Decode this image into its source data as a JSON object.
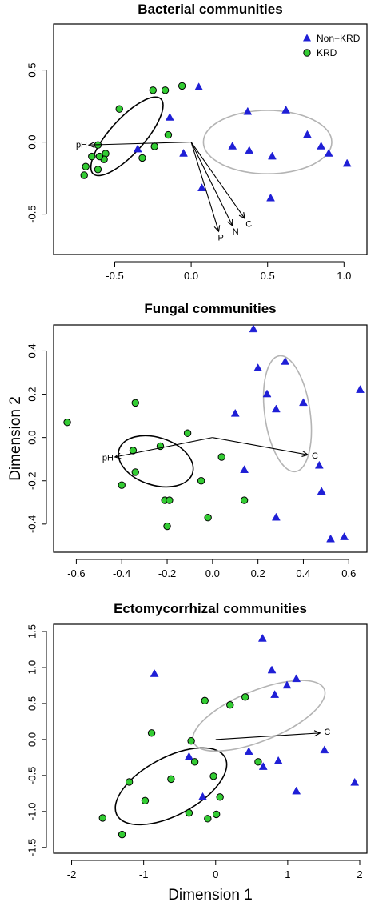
{
  "legend": {
    "position": "top-right",
    "entries": [
      {
        "label": "Non−KRD",
        "marker": "triangle",
        "color": "#1f1fd6"
      },
      {
        "label": "KRD",
        "marker": "circle",
        "color": "#33cc33"
      }
    ]
  },
  "axes": {
    "xlabel": "Dimension 1",
    "ylabel": "Dimension 2"
  },
  "chart_data": [
    {
      "type": "scatter",
      "title": "Bacterial communities",
      "xlabel": "",
      "ylabel": "",
      "xlim": [
        -0.9,
        1.15
      ],
      "ylim": [
        -0.78,
        0.82
      ],
      "xticks": [
        -0.5,
        0.0,
        0.5,
        1.0
      ],
      "xtick_labels": [
        "-0.5",
        "0.0",
        "0.5",
        "1.0"
      ],
      "yticks": [
        -0.5,
        0.0,
        0.5
      ],
      "ytick_labels": [
        "-0.5",
        "0.0",
        "0.5"
      ],
      "series": [
        {
          "name": "Non−KRD",
          "marker": "triangle",
          "x": [
            0.05,
            -0.14,
            -0.35,
            -0.05,
            0.37,
            0.62,
            0.27,
            0.38,
            0.53,
            0.76,
            0.85,
            0.9,
            1.02,
            0.52,
            0.07
          ],
          "y": [
            0.38,
            0.17,
            -0.05,
            -0.08,
            0.21,
            0.22,
            -0.03,
            -0.06,
            -0.1,
            0.05,
            -0.03,
            -0.08,
            -0.15,
            -0.39,
            -0.32
          ]
        },
        {
          "name": "KRD",
          "marker": "circle",
          "x": [
            -0.47,
            -0.25,
            -0.17,
            -0.06,
            -0.15,
            -0.24,
            -0.32,
            -0.61,
            -0.56,
            -0.57,
            -0.6,
            -0.65,
            -0.69,
            -0.7,
            -0.61
          ],
          "y": [
            0.23,
            0.36,
            0.36,
            0.39,
            0.05,
            -0.03,
            -0.11,
            -0.02,
            -0.08,
            -0.12,
            -0.1,
            -0.1,
            -0.17,
            -0.23,
            -0.19
          ]
        }
      ],
      "ellipses": [
        {
          "group": "KRD",
          "cx": -0.42,
          "cy": 0.04,
          "rx": 0.33,
          "ry": 0.12,
          "angle_deg": 48
        },
        {
          "group": "Non−KRD",
          "cx": 0.5,
          "cy": 0.0,
          "rx": 0.42,
          "ry": 0.22,
          "angle_deg": 0
        }
      ],
      "vectors": [
        {
          "label": "pH",
          "x": -0.67,
          "y": -0.02
        },
        {
          "label": "P",
          "x": 0.18,
          "y": -0.62
        },
        {
          "label": "N",
          "x": 0.27,
          "y": -0.58
        },
        {
          "label": "C",
          "x": 0.35,
          "y": -0.53
        }
      ]
    },
    {
      "type": "scatter",
      "title": "Fungal communities",
      "xlabel": "",
      "ylabel": "Dimension 2",
      "xlim": [
        -0.7,
        0.68
      ],
      "ylim": [
        -0.53,
        0.52
      ],
      "xticks": [
        -0.6,
        -0.4,
        -0.2,
        0.0,
        0.2,
        0.4,
        0.6
      ],
      "xtick_labels": [
        "-0.6",
        "-0.4",
        "-0.2",
        "0.0",
        "0.2",
        "0.4",
        "0.6"
      ],
      "yticks": [
        -0.4,
        -0.2,
        0.0,
        0.2,
        0.4
      ],
      "ytick_labels": [
        "-0.4",
        "-0.2",
        "0.0",
        "0.2",
        "0.4"
      ],
      "series": [
        {
          "name": "Non−KRD",
          "marker": "triangle",
          "x": [
            0.18,
            0.2,
            0.32,
            0.24,
            0.28,
            0.65,
            0.1,
            0.4,
            0.47,
            0.14,
            0.48,
            0.28,
            0.58,
            0.52
          ],
          "y": [
            0.5,
            0.32,
            0.35,
            0.2,
            0.13,
            0.22,
            0.11,
            0.16,
            -0.13,
            -0.15,
            -0.25,
            -0.37,
            -0.46,
            -0.47
          ]
        },
        {
          "name": "KRD",
          "marker": "circle",
          "x": [
            -0.64,
            -0.34,
            -0.11,
            -0.35,
            -0.23,
            0.04,
            -0.34,
            -0.4,
            -0.05,
            -0.21,
            -0.19,
            0.14,
            -0.02,
            -0.2
          ],
          "y": [
            0.07,
            0.16,
            0.02,
            -0.06,
            -0.04,
            -0.09,
            -0.16,
            -0.22,
            -0.2,
            -0.29,
            -0.29,
            -0.29,
            -0.37,
            -0.41
          ]
        }
      ],
      "ellipses": [
        {
          "group": "KRD",
          "cx": -0.25,
          "cy": -0.11,
          "rx": 0.17,
          "ry": 0.11,
          "angle_deg": -18
        },
        {
          "group": "Non−KRD",
          "cx": 0.33,
          "cy": 0.11,
          "rx": 0.1,
          "ry": 0.27,
          "angle_deg": 8
        }
      ],
      "vectors": [
        {
          "label": "pH",
          "x": -0.43,
          "y": -0.09
        },
        {
          "label": "C",
          "x": 0.42,
          "y": -0.08
        }
      ]
    },
    {
      "type": "scatter",
      "title": "Ectomycorrhizal communities",
      "xlabel": "Dimension 1",
      "ylabel": "",
      "xlim": [
        -2.25,
        2.1
      ],
      "ylim": [
        -1.58,
        1.6
      ],
      "xticks": [
        -2,
        -1,
        0,
        1,
        2
      ],
      "xtick_labels": [
        "-2",
        "-1",
        "0",
        "1",
        "2"
      ],
      "yticks": [
        -1.5,
        -1.0,
        -0.5,
        0.0,
        0.5,
        1.0,
        1.5
      ],
      "ytick_labels": [
        "-1.5",
        "-1.0",
        "-0.5",
        "0.0",
        "0.5",
        "1.0",
        "1.5"
      ],
      "series": [
        {
          "name": "Non−KRD",
          "marker": "triangle",
          "x": [
            0.65,
            -0.85,
            0.78,
            0.99,
            1.12,
            0.82,
            -0.37,
            0.46,
            0.66,
            1.51,
            0.87,
            1.93,
            1.12,
            -0.18
          ],
          "y": [
            1.4,
            0.91,
            0.96,
            0.75,
            0.84,
            0.62,
            -0.24,
            -0.17,
            -0.38,
            -0.15,
            -0.3,
            -0.6,
            -0.72,
            -0.8
          ]
        },
        {
          "name": "KRD",
          "marker": "circle",
          "x": [
            -0.15,
            0.2,
            0.41,
            -0.89,
            -0.34,
            -1.2,
            -0.62,
            -0.29,
            -0.03,
            0.59,
            -0.98,
            0.06,
            -0.37,
            -0.11,
            0.01,
            -1.57,
            -1.3
          ],
          "y": [
            0.54,
            0.48,
            0.59,
            0.09,
            -0.02,
            -0.59,
            -0.55,
            -0.31,
            -0.51,
            -0.31,
            -0.85,
            -0.8,
            -1.02,
            -1.1,
            -1.04,
            -1.09,
            -1.32
          ]
        }
      ],
      "ellipses": [
        {
          "group": "KRD",
          "cx": -0.62,
          "cy": -0.65,
          "rx": 0.85,
          "ry": 0.4,
          "angle_deg": 28
        },
        {
          "group": "Non−KRD",
          "cx": 0.6,
          "cy": 0.33,
          "rx": 0.98,
          "ry": 0.35,
          "angle_deg": 22
        }
      ],
      "vectors": [
        {
          "label": "C",
          "x": 1.45,
          "y": 0.09
        }
      ]
    }
  ]
}
